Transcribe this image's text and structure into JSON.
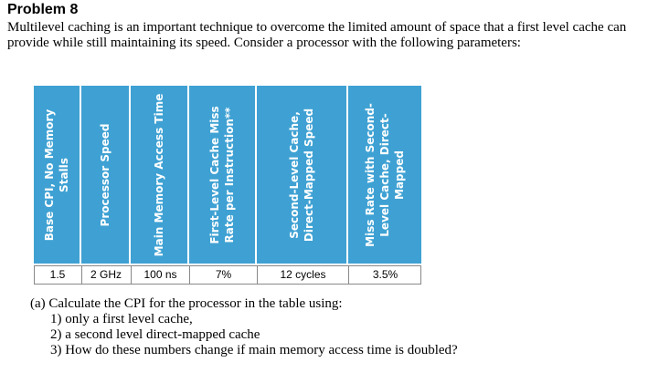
{
  "problem_title": "Problem 8",
  "intro": "Multilevel caching is an important technique to overcome the limited amount of space that a first level cache can provide while still maintaining its speed. Consider a processor with the following parameters:",
  "table": {
    "headers": [
      "Base CPI, No Memory Stalls",
      "Processor Speed",
      "Main Memory Access Time",
      "First-Level Cache Miss Rate per Instruction**",
      "Second-Level Cache, Direct-Mapped Speed",
      "Miss Rate with Second-Level Cache, Direct-Mapped"
    ],
    "values": [
      "1.5",
      "2 GHz",
      "100 ns",
      "7%",
      "12 cycles",
      "3.5%"
    ],
    "header_color": "#3fa1d3"
  },
  "questions": {
    "lead": "(a) Calculate the CPI for the processor in the table using:",
    "items": [
      "1) only a first level cache,",
      "2) a second level direct-mapped cache",
      "3) How do these numbers change if main memory access time is doubled?"
    ]
  }
}
